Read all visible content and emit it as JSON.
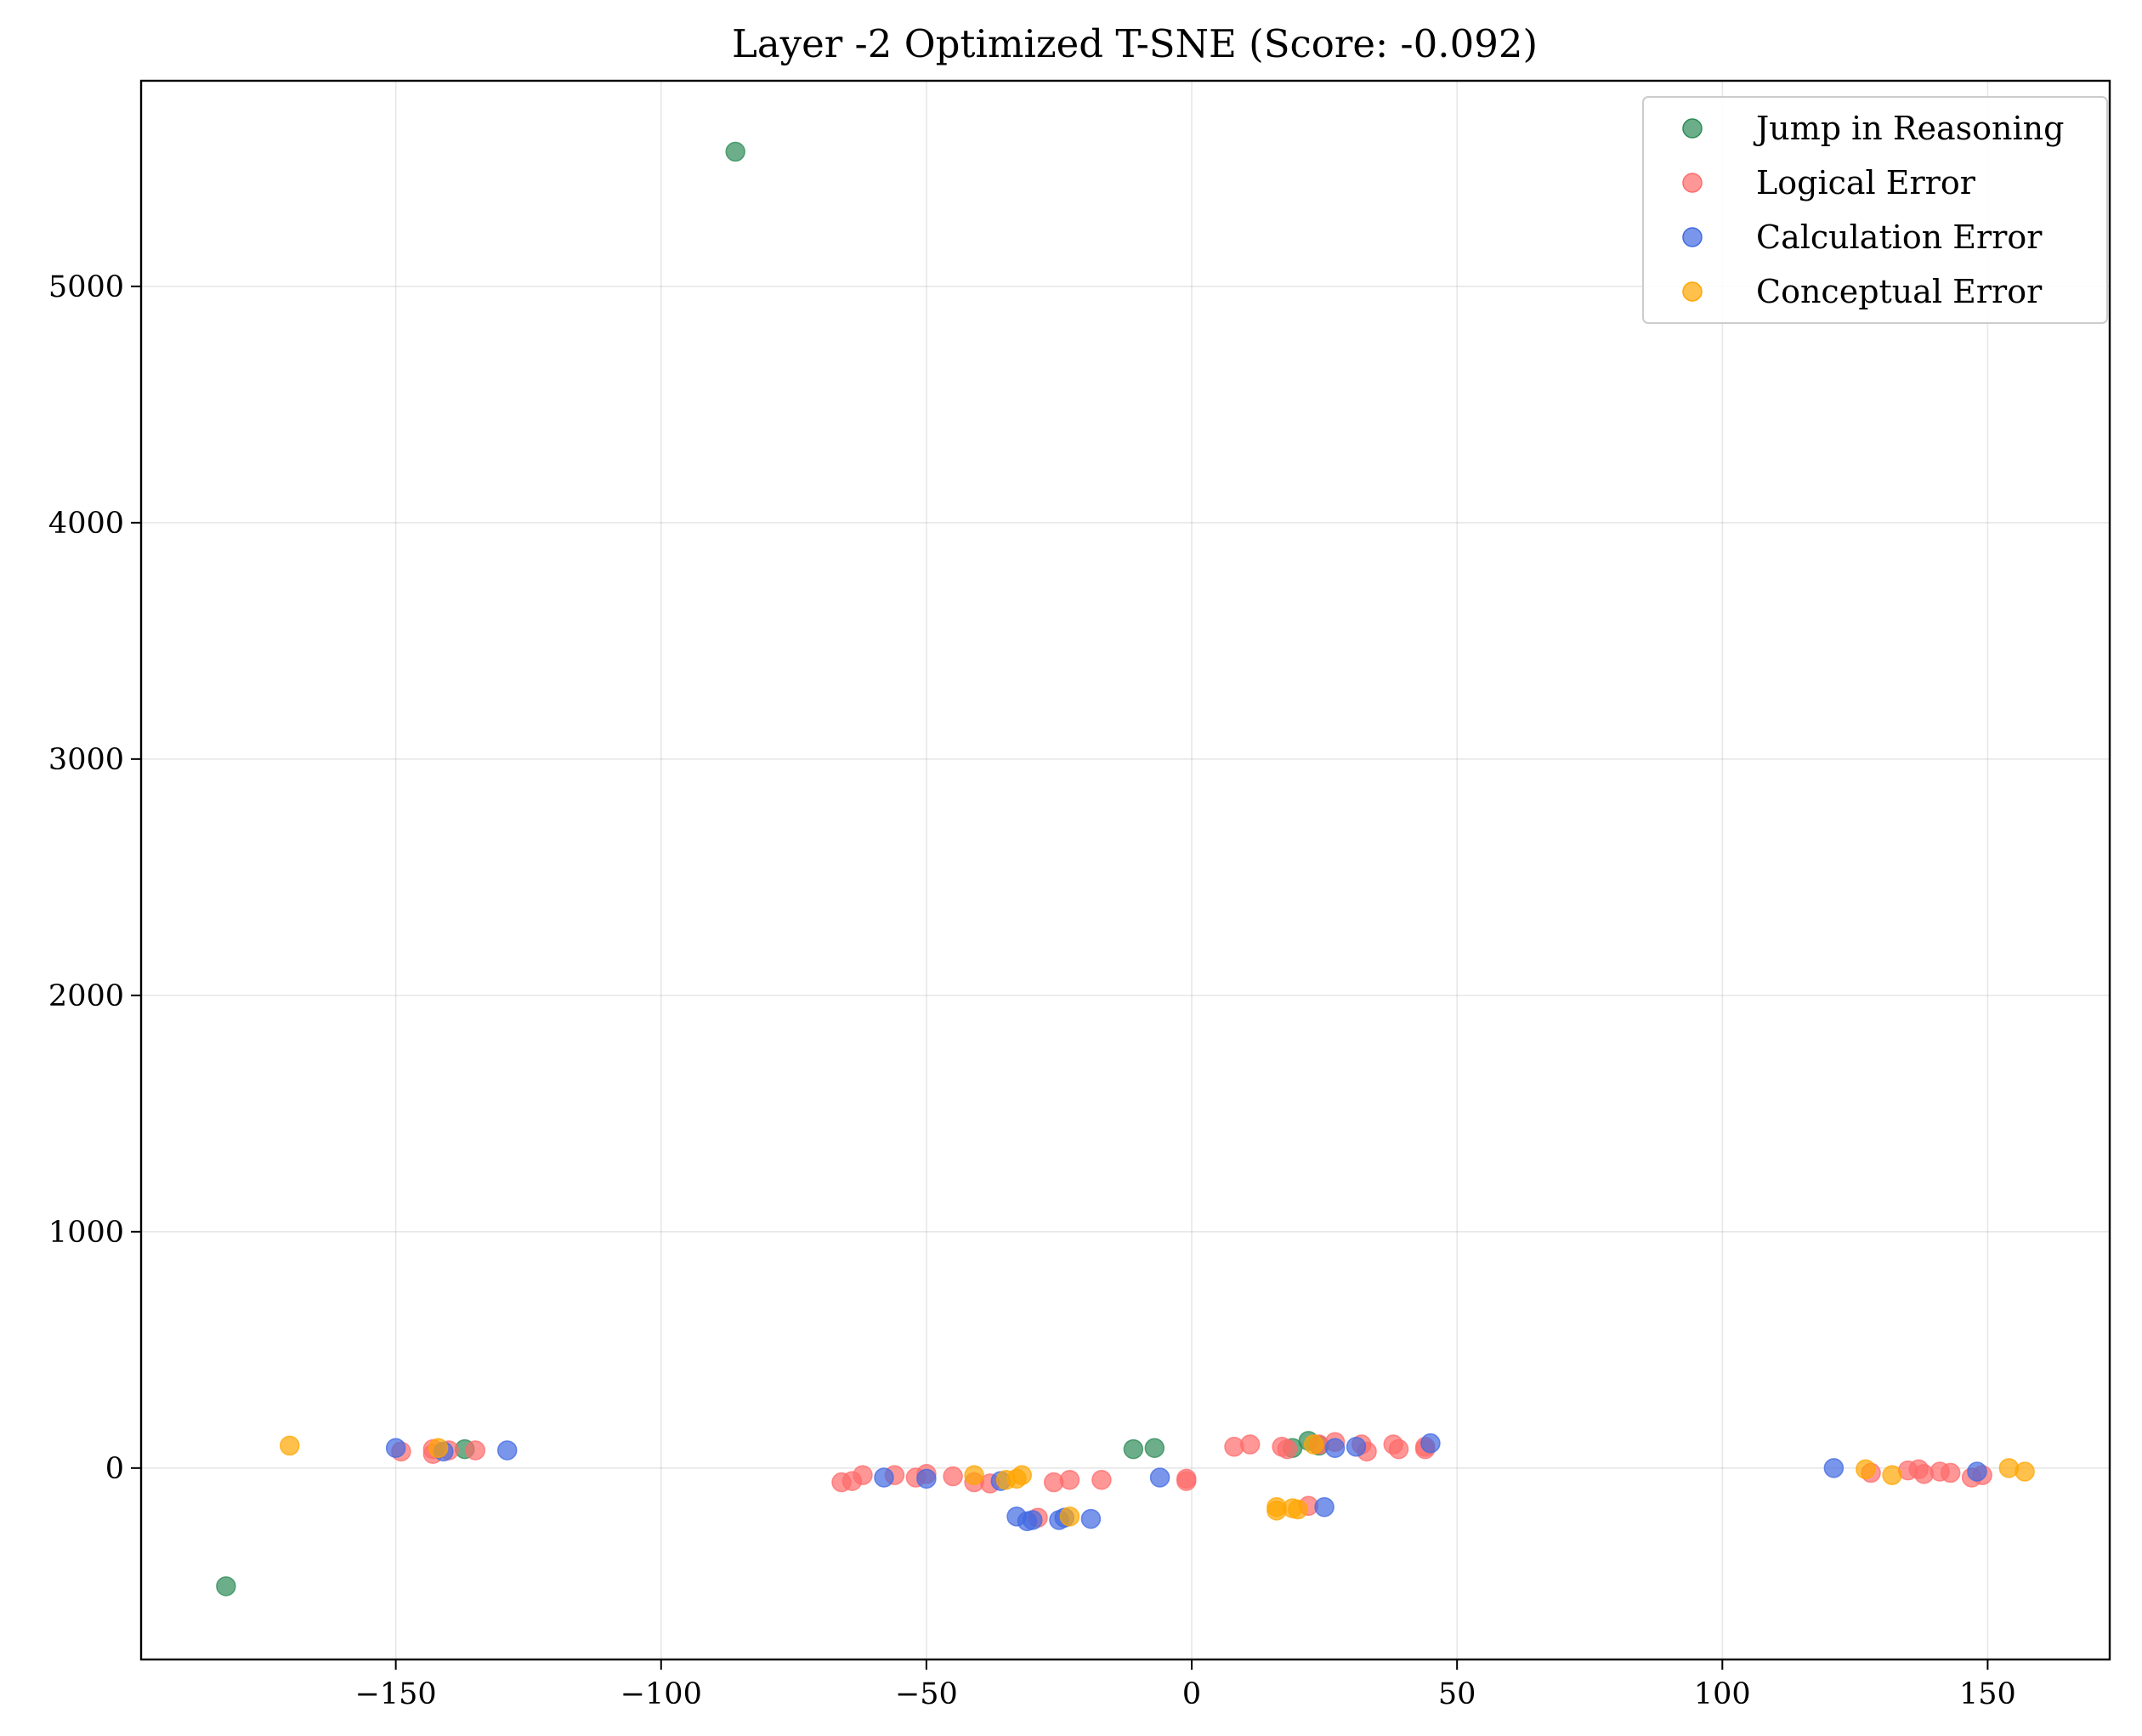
{
  "chart_data": {
    "type": "scatter",
    "title": "Layer -2 Optimized T-SNE (Score: -0.092)",
    "xlabel": "",
    "ylabel": "",
    "xlim": [
      -198,
      173
    ],
    "ylim": [
      -810,
      5870
    ],
    "xticks": [
      -150,
      -100,
      -50,
      0,
      50,
      100,
      150
    ],
    "xtick_labels": [
      "−150",
      "−100",
      "−50",
      "0",
      "50",
      "100",
      "150"
    ],
    "yticks": [
      0,
      1000,
      2000,
      3000,
      4000,
      5000
    ],
    "ytick_labels": [
      "0",
      "1000",
      "2000",
      "3000",
      "4000",
      "5000"
    ],
    "grid": true,
    "legend_position": "top-right",
    "series": [
      {
        "name": "Jump in Reasoning",
        "color": "#2e8b57",
        "points": [
          [
            -86,
            5570
          ],
          [
            -182,
            -500
          ],
          [
            -137,
            80
          ],
          [
            -11,
            80
          ],
          [
            -7,
            85
          ],
          [
            19,
            85
          ],
          [
            22,
            115
          ],
          [
            24,
            95
          ]
        ]
      },
      {
        "name": "Logical Error",
        "color": "#ff6b6b",
        "points": [
          [
            -149,
            70
          ],
          [
            -143,
            80
          ],
          [
            -143,
            60
          ],
          [
            -140,
            75
          ],
          [
            -135,
            75
          ],
          [
            -66,
            -60
          ],
          [
            -64,
            -55
          ],
          [
            -62,
            -30
          ],
          [
            -56,
            -30
          ],
          [
            -52,
            -40
          ],
          [
            -50,
            -25
          ],
          [
            -45,
            -35
          ],
          [
            -41,
            -60
          ],
          [
            -38,
            -65
          ],
          [
            -29,
            -210
          ],
          [
            -26,
            -60
          ],
          [
            -23,
            -50
          ],
          [
            -17,
            -50
          ],
          [
            -1,
            -55
          ],
          [
            -1,
            -45
          ],
          [
            8,
            90
          ],
          [
            11,
            100
          ],
          [
            17,
            90
          ],
          [
            18,
            80
          ],
          [
            22,
            -160
          ],
          [
            24,
            100
          ],
          [
            27,
            110
          ],
          [
            32,
            100
          ],
          [
            33,
            70
          ],
          [
            38,
            100
          ],
          [
            39,
            80
          ],
          [
            44,
            80
          ],
          [
            44,
            90
          ],
          [
            128,
            -20
          ],
          [
            135,
            -10
          ],
          [
            137,
            -5
          ],
          [
            138,
            -25
          ],
          [
            141,
            -15
          ],
          [
            143,
            -20
          ],
          [
            147,
            -40
          ],
          [
            149,
            -30
          ]
        ]
      },
      {
        "name": "Calculation Error",
        "color": "#4169e1",
        "points": [
          [
            -150,
            85
          ],
          [
            -141,
            70
          ],
          [
            -129,
            75
          ],
          [
            -58,
            -40
          ],
          [
            -50,
            -45
          ],
          [
            -36,
            -55
          ],
          [
            -33,
            -205
          ],
          [
            -31,
            -225
          ],
          [
            -30,
            -220
          ],
          [
            -25,
            -220
          ],
          [
            -24,
            -210
          ],
          [
            -19,
            -215
          ],
          [
            -6,
            -40
          ],
          [
            25,
            -165
          ],
          [
            27,
            85
          ],
          [
            31,
            90
          ],
          [
            45,
            105
          ],
          [
            121,
            0
          ],
          [
            148,
            -15
          ]
        ]
      },
      {
        "name": "Conceptual Error",
        "color": "#ffa500",
        "points": [
          [
            -170,
            95
          ],
          [
            -142,
            85
          ],
          [
            -41,
            -30
          ],
          [
            -35,
            -50
          ],
          [
            -33,
            -45
          ],
          [
            -32,
            -30
          ],
          [
            -23,
            -205
          ],
          [
            16,
            -165
          ],
          [
            16,
            -180
          ],
          [
            19,
            -170
          ],
          [
            20,
            -175
          ],
          [
            23,
            100
          ],
          [
            127,
            -5
          ],
          [
            132,
            -30
          ],
          [
            154,
            0
          ],
          [
            157,
            -15
          ]
        ]
      }
    ]
  }
}
